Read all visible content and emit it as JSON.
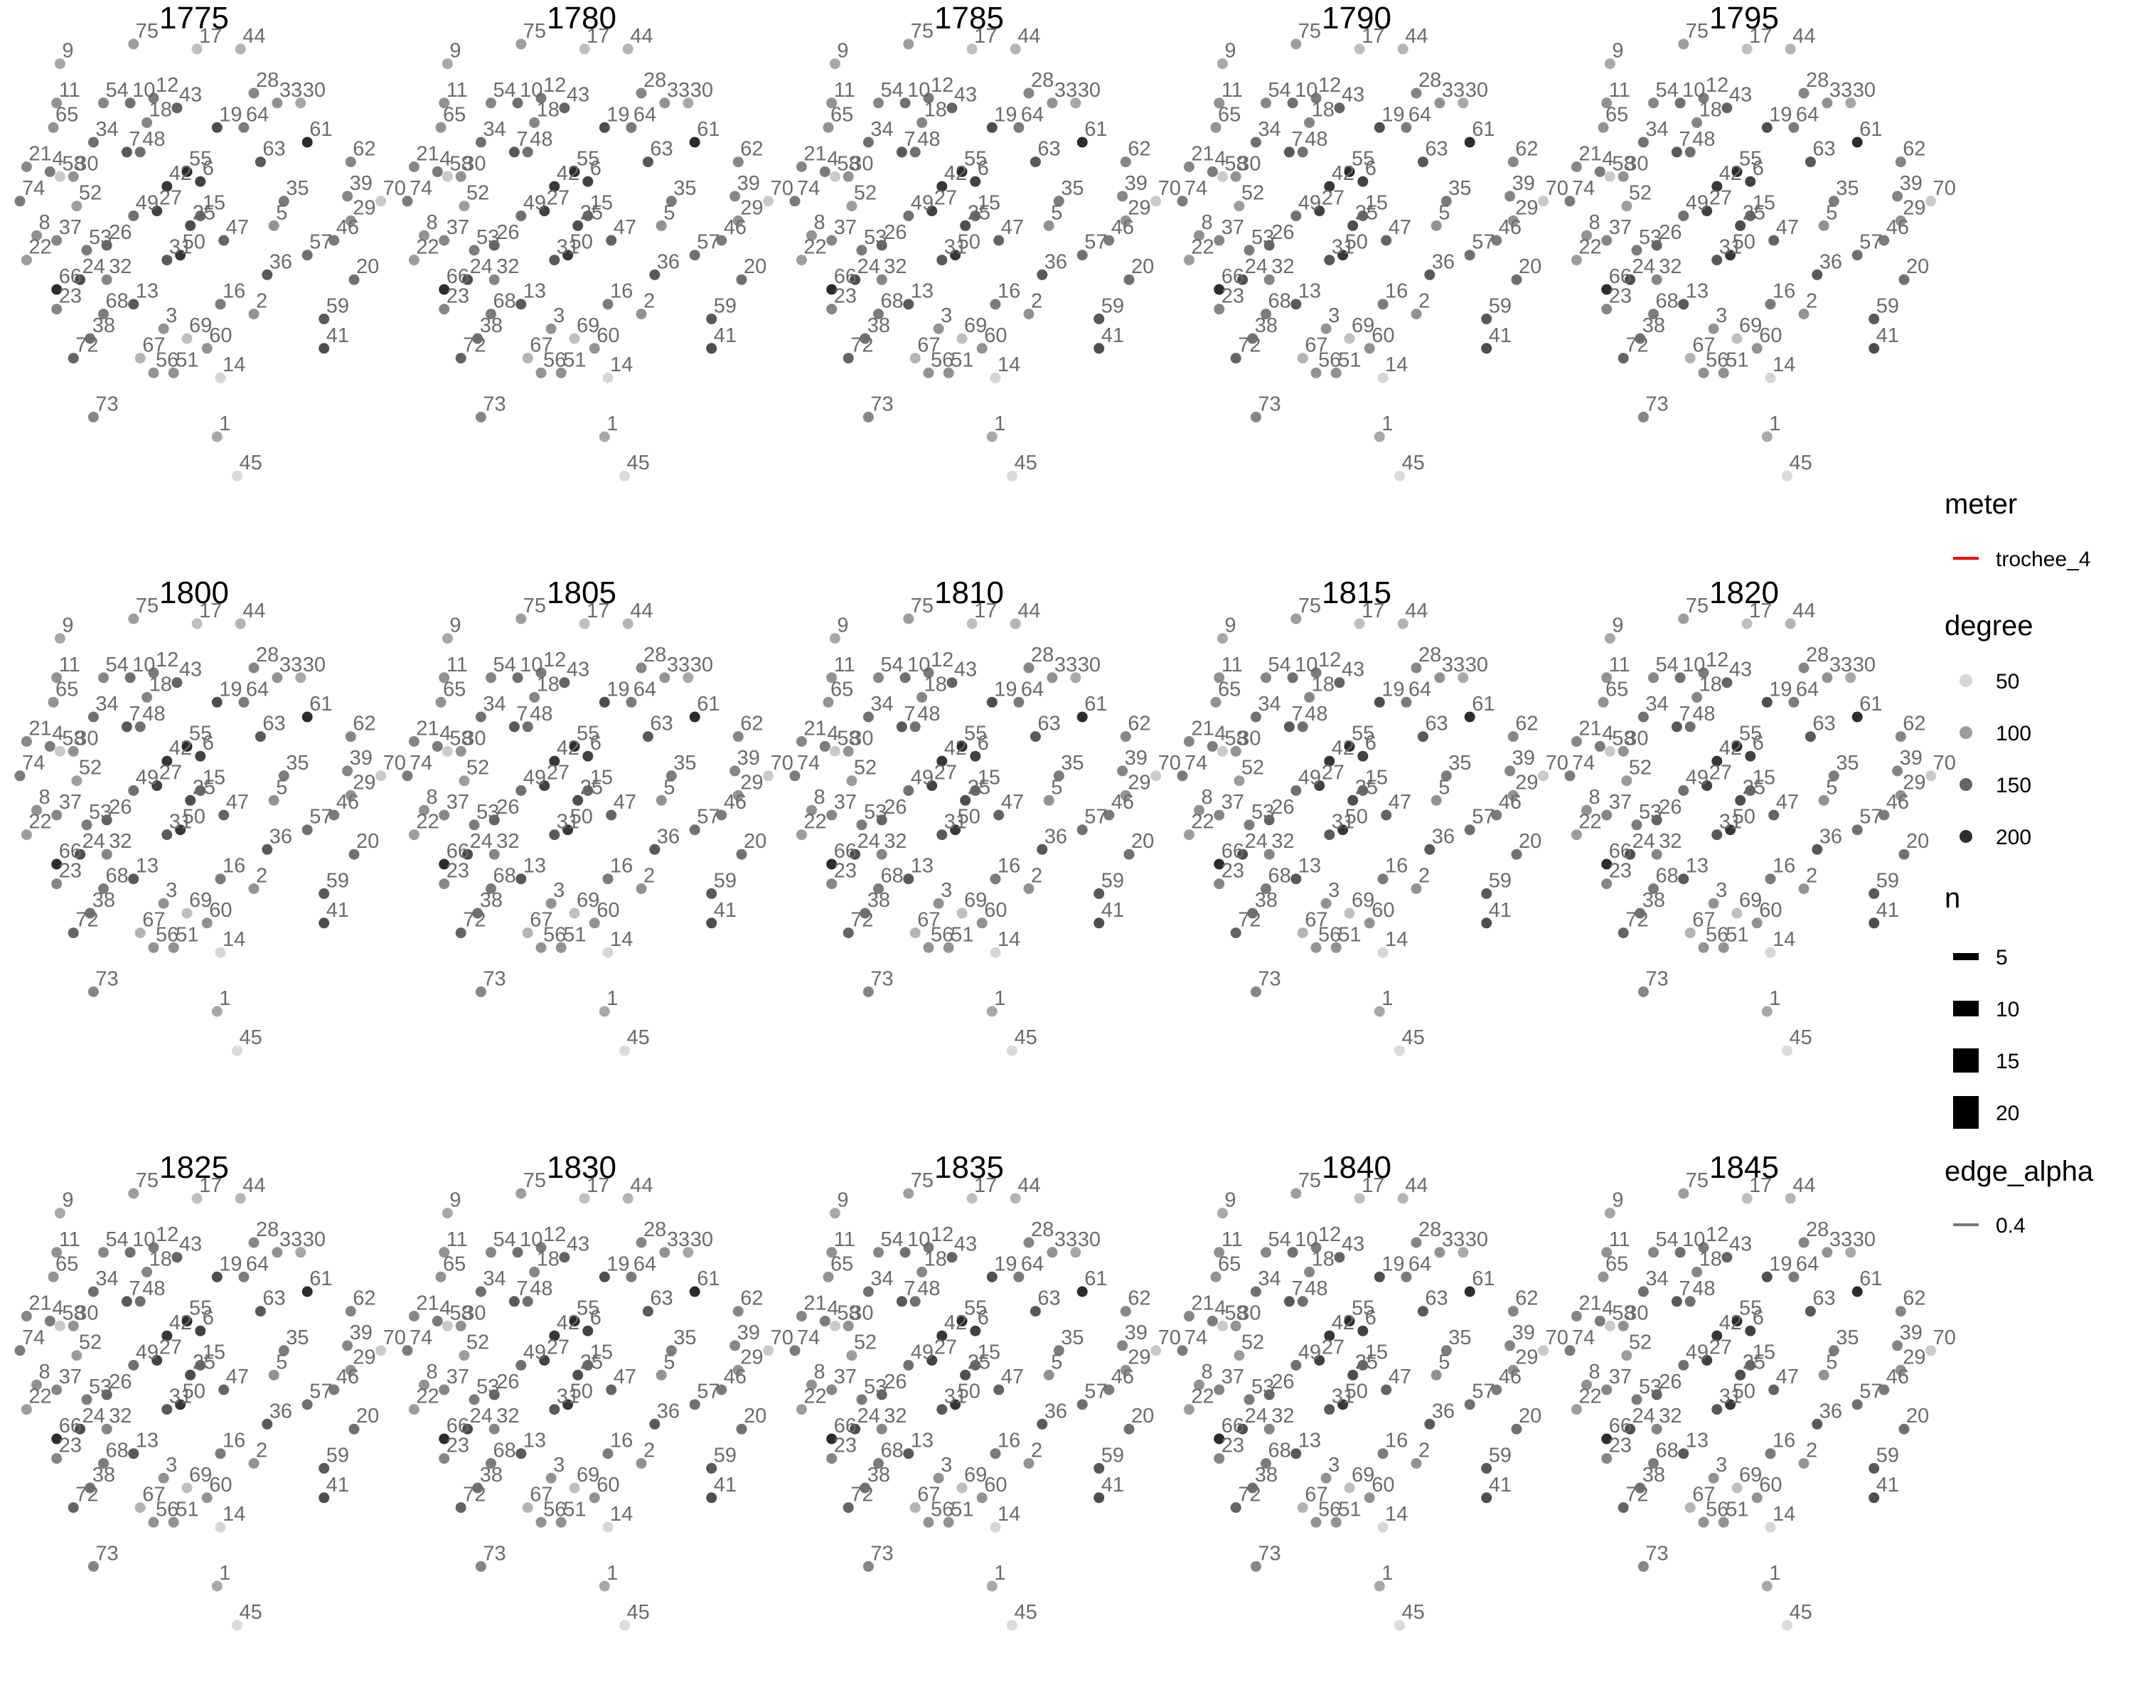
{
  "chart_data": {
    "type": "network-facets",
    "panel_titles": [
      "1775",
      "1780",
      "1785",
      "1790",
      "1795",
      "1800",
      "1805",
      "1810",
      "1815",
      "1820",
      "1825",
      "1830",
      "1835",
      "1840",
      "1845"
    ],
    "nodes": [
      {
        "id": "9",
        "x": 0.12,
        "y": 0.04,
        "degree": 90
      },
      {
        "id": "75",
        "x": 0.34,
        "y": 0.0,
        "degree": 100
      },
      {
        "id": "17",
        "x": 0.53,
        "y": 0.01,
        "degree": 70
      },
      {
        "id": "44",
        "x": 0.66,
        "y": 0.01,
        "degree": 80
      },
      {
        "id": "11",
        "x": 0.11,
        "y": 0.12,
        "degree": 110
      },
      {
        "id": "54",
        "x": 0.25,
        "y": 0.12,
        "degree": 120
      },
      {
        "id": "10",
        "x": 0.33,
        "y": 0.12,
        "degree": 140
      },
      {
        "id": "12",
        "x": 0.4,
        "y": 0.11,
        "degree": 130
      },
      {
        "id": "43",
        "x": 0.47,
        "y": 0.13,
        "degree": 150
      },
      {
        "id": "28",
        "x": 0.7,
        "y": 0.1,
        "degree": 120
      },
      {
        "id": "33",
        "x": 0.77,
        "y": 0.12,
        "degree": 110
      },
      {
        "id": "30",
        "x": 0.84,
        "y": 0.12,
        "degree": 90
      },
      {
        "id": "65",
        "x": 0.1,
        "y": 0.17,
        "degree": 110
      },
      {
        "id": "18",
        "x": 0.38,
        "y": 0.16,
        "degree": 120
      },
      {
        "id": "19",
        "x": 0.59,
        "y": 0.17,
        "degree": 170
      },
      {
        "id": "64",
        "x": 0.67,
        "y": 0.17,
        "degree": 130
      },
      {
        "id": "34",
        "x": 0.22,
        "y": 0.2,
        "degree": 140
      },
      {
        "id": "61",
        "x": 0.86,
        "y": 0.2,
        "degree": 200
      },
      {
        "id": "7",
        "x": 0.32,
        "y": 0.22,
        "degree": 160
      },
      {
        "id": "48",
        "x": 0.36,
        "y": 0.22,
        "degree": 140
      },
      {
        "id": "63",
        "x": 0.72,
        "y": 0.24,
        "degree": 160
      },
      {
        "id": "62",
        "x": 0.99,
        "y": 0.24,
        "degree": 120
      },
      {
        "id": "21",
        "x": 0.02,
        "y": 0.25,
        "degree": 120
      },
      {
        "id": "4",
        "x": 0.09,
        "y": 0.26,
        "degree": 130
      },
      {
        "id": "58",
        "x": 0.12,
        "y": 0.27,
        "degree": 60
      },
      {
        "id": "30b",
        "x": 0.16,
        "y": 0.27,
        "degree": 110
      },
      {
        "id": "55",
        "x": 0.5,
        "y": 0.26,
        "degree": 200
      },
      {
        "id": "6",
        "x": 0.54,
        "y": 0.28,
        "degree": 180
      },
      {
        "id": "74",
        "x": 0.0,
        "y": 0.32,
        "degree": 130
      },
      {
        "id": "42",
        "x": 0.44,
        "y": 0.29,
        "degree": 190
      },
      {
        "id": "52",
        "x": 0.17,
        "y": 0.33,
        "degree": 100
      },
      {
        "id": "35",
        "x": 0.79,
        "y": 0.32,
        "degree": 130
      },
      {
        "id": "39",
        "x": 0.98,
        "y": 0.31,
        "degree": 120
      },
      {
        "id": "70",
        "x": 1.08,
        "y": 0.32,
        "degree": 60
      },
      {
        "id": "27",
        "x": 0.41,
        "y": 0.34,
        "degree": 180
      },
      {
        "id": "15",
        "x": 0.54,
        "y": 0.35,
        "degree": 150
      },
      {
        "id": "49",
        "x": 0.34,
        "y": 0.35,
        "degree": 140
      },
      {
        "id": "5",
        "x": 0.76,
        "y": 0.37,
        "degree": 110
      },
      {
        "id": "25",
        "x": 0.51,
        "y": 0.37,
        "degree": 170
      },
      {
        "id": "29",
        "x": 0.99,
        "y": 0.36,
        "degree": 110
      },
      {
        "id": "8",
        "x": 0.05,
        "y": 0.39,
        "degree": 110
      },
      {
        "id": "37",
        "x": 0.11,
        "y": 0.4,
        "degree": 120
      },
      {
        "id": "47",
        "x": 0.61,
        "y": 0.4,
        "degree": 150
      },
      {
        "id": "46",
        "x": 0.94,
        "y": 0.4,
        "degree": 130
      },
      {
        "id": "26",
        "x": 0.26,
        "y": 0.41,
        "degree": 150
      },
      {
        "id": "53",
        "x": 0.2,
        "y": 0.42,
        "degree": 130
      },
      {
        "id": "22",
        "x": 0.02,
        "y": 0.44,
        "degree": 100
      },
      {
        "id": "50",
        "x": 0.48,
        "y": 0.43,
        "degree": 190
      },
      {
        "id": "31",
        "x": 0.44,
        "y": 0.44,
        "degree": 160
      },
      {
        "id": "57",
        "x": 0.86,
        "y": 0.43,
        "degree": 140
      },
      {
        "id": "36",
        "x": 0.74,
        "y": 0.47,
        "degree": 160
      },
      {
        "id": "24",
        "x": 0.18,
        "y": 0.48,
        "degree": 170
      },
      {
        "id": "32",
        "x": 0.26,
        "y": 0.48,
        "degree": 120
      },
      {
        "id": "20",
        "x": 1.0,
        "y": 0.48,
        "degree": 140
      },
      {
        "id": "66",
        "x": 0.11,
        "y": 0.5,
        "degree": 200
      },
      {
        "id": "23",
        "x": 0.11,
        "y": 0.54,
        "degree": 120
      },
      {
        "id": "13",
        "x": 0.34,
        "y": 0.53,
        "degree": 160
      },
      {
        "id": "16",
        "x": 0.6,
        "y": 0.53,
        "degree": 130
      },
      {
        "id": "68",
        "x": 0.25,
        "y": 0.55,
        "degree": 130
      },
      {
        "id": "2",
        "x": 0.7,
        "y": 0.55,
        "degree": 110
      },
      {
        "id": "59",
        "x": 0.91,
        "y": 0.56,
        "degree": 160
      },
      {
        "id": "3",
        "x": 0.43,
        "y": 0.58,
        "degree": 110
      },
      {
        "id": "38",
        "x": 0.21,
        "y": 0.6,
        "degree": 140
      },
      {
        "id": "69",
        "x": 0.5,
        "y": 0.6,
        "degree": 70
      },
      {
        "id": "60",
        "x": 0.56,
        "y": 0.62,
        "degree": 110
      },
      {
        "id": "41",
        "x": 0.91,
        "y": 0.62,
        "degree": 170
      },
      {
        "id": "72",
        "x": 0.16,
        "y": 0.64,
        "degree": 150
      },
      {
        "id": "67",
        "x": 0.36,
        "y": 0.64,
        "degree": 80
      },
      {
        "id": "56",
        "x": 0.4,
        "y": 0.67,
        "degree": 110
      },
      {
        "id": "51",
        "x": 0.46,
        "y": 0.67,
        "degree": 110
      },
      {
        "id": "14",
        "x": 0.6,
        "y": 0.68,
        "degree": 50
      },
      {
        "id": "73",
        "x": 0.22,
        "y": 0.76,
        "degree": 120
      },
      {
        "id": "1",
        "x": 0.59,
        "y": 0.8,
        "degree": 90
      },
      {
        "id": "45",
        "x": 0.65,
        "y": 0.88,
        "degree": 45
      }
    ],
    "edges": [
      [],
      [],
      [],
      [],
      [],
      [],
      [],
      [],
      [],
      [],
      [],
      [],
      [],
      [],
      []
    ],
    "legend": {
      "meter": {
        "title": "meter",
        "entries": [
          "trochee_4"
        ],
        "color": "#ff0000"
      },
      "degree": {
        "title": "degree",
        "entries": [
          "50",
          "100",
          "150",
          "200"
        ]
      },
      "n": {
        "title": "n",
        "entries": [
          "5",
          "10",
          "15",
          "20"
        ]
      },
      "edge_alpha": {
        "title": "edge_alpha",
        "entries": [
          "0.4"
        ]
      }
    }
  }
}
